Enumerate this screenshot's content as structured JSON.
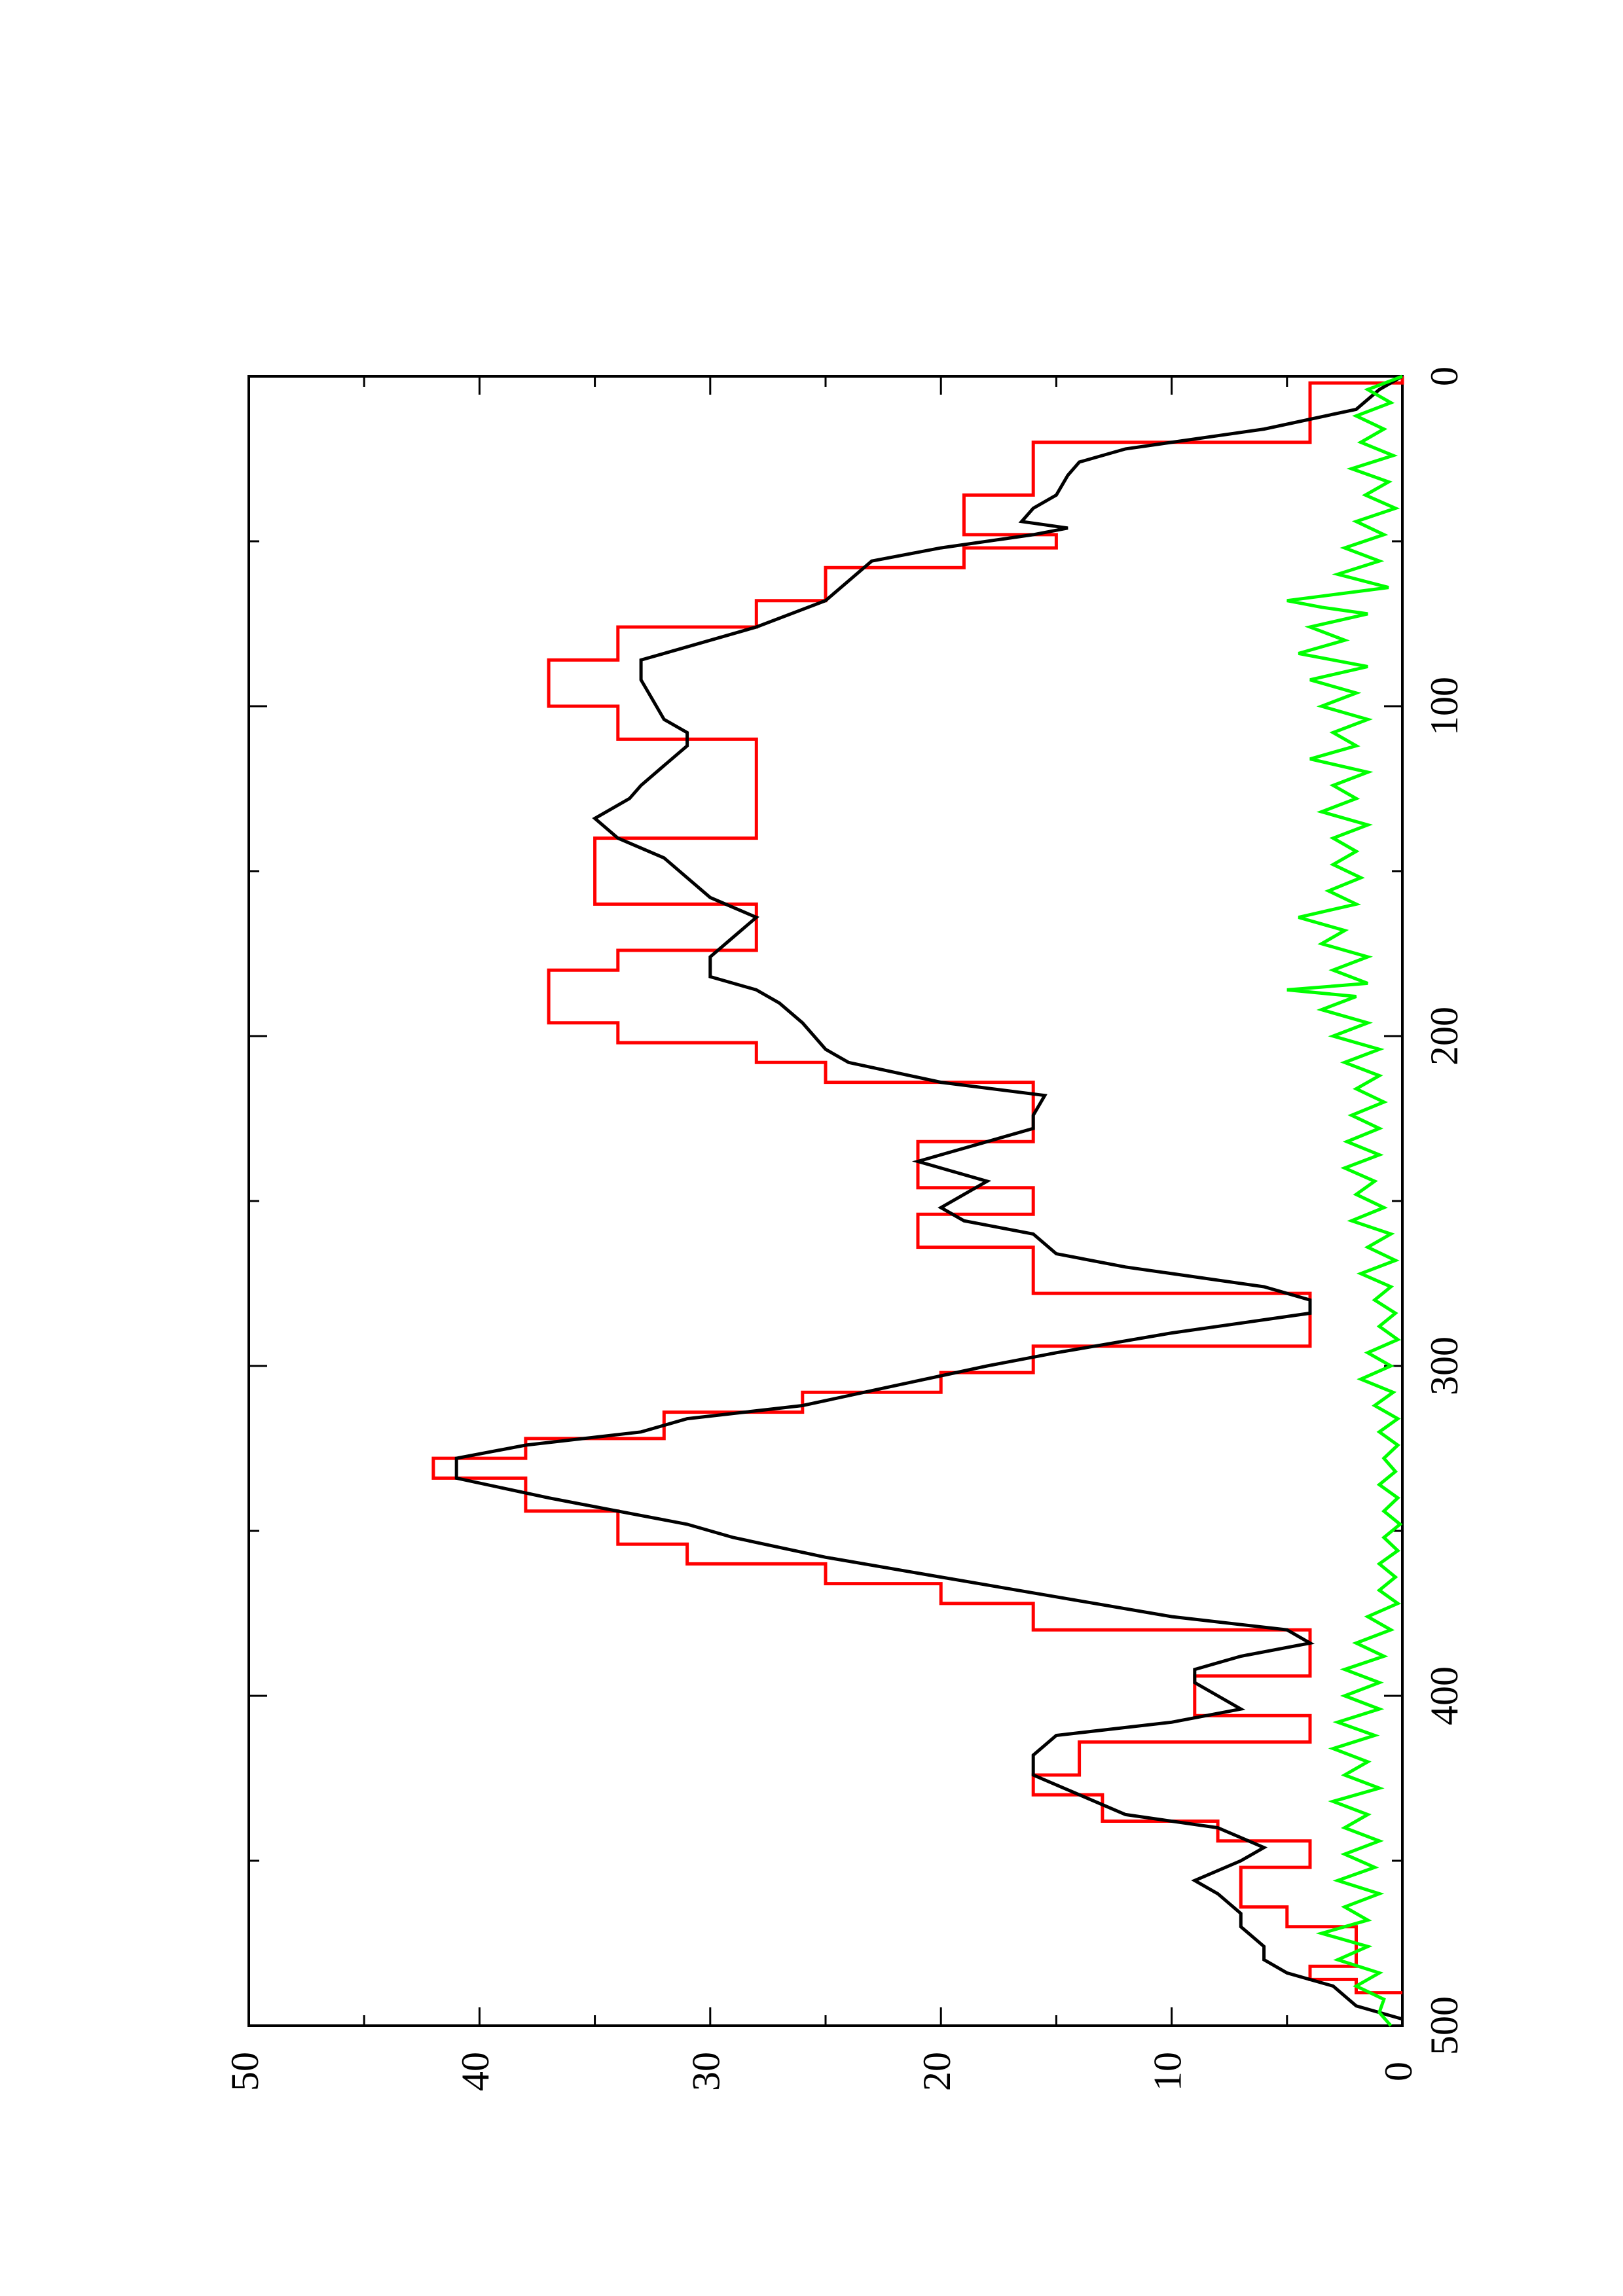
{
  "chart_data": {
    "type": "line",
    "orientation": "rotated-90-ccw",
    "title": "",
    "xlabel": "",
    "ylabel": "",
    "xlim": [
      0,
      500
    ],
    "ylim": [
      0,
      50
    ],
    "x_ticks": [
      0,
      100,
      200,
      300,
      400,
      500
    ],
    "y_ticks": [
      0,
      10,
      20,
      30,
      40,
      50
    ],
    "x_tick_labels": [
      "0",
      "100",
      "200",
      "300",
      "400",
      "500"
    ],
    "y_tick_labels": [
      "0",
      "10",
      "20",
      "30",
      "40",
      "50"
    ],
    "grid": false,
    "legend": "none",
    "series": [
      {
        "color": "#ff0000",
        "style": "step",
        "points": [
          [
            0,
            0
          ],
          [
            2,
            4
          ],
          [
            12,
            4
          ],
          [
            20,
            16
          ],
          [
            32,
            16
          ],
          [
            36,
            19
          ],
          [
            44,
            19
          ],
          [
            48,
            15
          ],
          [
            52,
            19
          ],
          [
            58,
            25
          ],
          [
            68,
            28
          ],
          [
            76,
            34
          ],
          [
            86,
            37
          ],
          [
            96,
            37
          ],
          [
            100,
            34
          ],
          [
            106,
            34
          ],
          [
            110,
            28
          ],
          [
            124,
            28
          ],
          [
            130,
            28
          ],
          [
            140,
            35
          ],
          [
            146,
            35
          ],
          [
            160,
            28
          ],
          [
            168,
            28
          ],
          [
            174,
            34
          ],
          [
            180,
            37
          ],
          [
            190,
            37
          ],
          [
            196,
            34
          ],
          [
            202,
            28
          ],
          [
            208,
            25
          ],
          [
            214,
            16
          ],
          [
            226,
            16
          ],
          [
            232,
            21
          ],
          [
            240,
            21
          ],
          [
            246,
            16
          ],
          [
            254,
            21
          ],
          [
            260,
            21
          ],
          [
            264,
            16
          ],
          [
            272,
            16
          ],
          [
            278,
            4
          ],
          [
            286,
            4
          ],
          [
            294,
            16
          ],
          [
            302,
            20
          ],
          [
            308,
            26
          ],
          [
            314,
            32
          ],
          [
            322,
            38
          ],
          [
            328,
            42
          ],
          [
            334,
            38
          ],
          [
            344,
            34
          ],
          [
            354,
            31
          ],
          [
            360,
            25
          ],
          [
            366,
            20
          ],
          [
            372,
            16
          ],
          [
            380,
            4
          ],
          [
            388,
            4
          ],
          [
            394,
            9
          ],
          [
            400,
            9
          ],
          [
            406,
            4
          ],
          [
            414,
            14
          ],
          [
            424,
            16
          ],
          [
            430,
            13
          ],
          [
            438,
            8
          ],
          [
            444,
            4
          ],
          [
            452,
            7
          ],
          [
            458,
            7
          ],
          [
            464,
            5
          ],
          [
            470,
            2
          ],
          [
            476,
            2
          ],
          [
            482,
            4
          ],
          [
            486,
            2
          ],
          [
            490,
            0
          ]
        ]
      },
      {
        "color": "#000000",
        "style": "line",
        "points": [
          [
            0,
            0
          ],
          [
            4,
            1
          ],
          [
            10,
            2
          ],
          [
            16,
            6
          ],
          [
            22,
            12
          ],
          [
            26,
            14
          ],
          [
            30,
            14.5
          ],
          [
            36,
            15
          ],
          [
            40,
            16
          ],
          [
            44,
            16.5
          ],
          [
            46,
            14.5
          ],
          [
            48,
            16
          ],
          [
            52,
            20
          ],
          [
            56,
            23
          ],
          [
            62,
            24
          ],
          [
            68,
            25
          ],
          [
            76,
            28
          ],
          [
            82,
            31
          ],
          [
            86,
            33
          ],
          [
            92,
            33
          ],
          [
            98,
            32.5
          ],
          [
            104,
            32
          ],
          [
            108,
            31
          ],
          [
            112,
            31
          ],
          [
            118,
            32
          ],
          [
            124,
            33
          ],
          [
            128,
            33.5
          ],
          [
            134,
            35
          ],
          [
            140,
            34
          ],
          [
            146,
            32
          ],
          [
            152,
            31
          ],
          [
            158,
            30
          ],
          [
            164,
            28
          ],
          [
            170,
            29
          ],
          [
            176,
            30
          ],
          [
            182,
            30
          ],
          [
            186,
            28
          ],
          [
            190,
            27
          ],
          [
            196,
            26
          ],
          [
            204,
            25
          ],
          [
            208,
            24
          ],
          [
            214,
            20
          ],
          [
            218,
            15.5
          ],
          [
            224,
            16
          ],
          [
            228,
            16
          ],
          [
            232,
            18
          ],
          [
            236,
            20
          ],
          [
            238,
            21
          ],
          [
            240,
            20
          ],
          [
            244,
            18
          ],
          [
            248,
            19
          ],
          [
            252,
            20
          ],
          [
            256,
            19
          ],
          [
            260,
            16
          ],
          [
            266,
            15
          ],
          [
            270,
            12
          ],
          [
            276,
            6
          ],
          [
            280,
            4
          ],
          [
            284,
            4
          ],
          [
            290,
            10
          ],
          [
            296,
            15
          ],
          [
            300,
            18
          ],
          [
            306,
            22
          ],
          [
            312,
            26
          ],
          [
            316,
            31
          ],
          [
            320,
            33
          ],
          [
            324,
            38
          ],
          [
            328,
            41
          ],
          [
            334,
            41
          ],
          [
            340,
            37
          ],
          [
            344,
            34
          ],
          [
            348,
            31
          ],
          [
            352,
            29
          ],
          [
            358,
            25
          ],
          [
            364,
            20
          ],
          [
            370,
            15
          ],
          [
            376,
            10
          ],
          [
            380,
            5
          ],
          [
            384,
            4
          ],
          [
            388,
            7
          ],
          [
            392,
            9
          ],
          [
            396,
            9
          ],
          [
            400,
            8
          ],
          [
            404,
            7
          ],
          [
            408,
            10
          ],
          [
            412,
            15
          ],
          [
            418,
            16
          ],
          [
            424,
            16
          ],
          [
            430,
            14
          ],
          [
            436,
            12
          ],
          [
            440,
            8
          ],
          [
            446,
            6
          ],
          [
            450,
            7
          ],
          [
            456,
            9
          ],
          [
            460,
            8
          ],
          [
            466,
            7
          ],
          [
            470,
            7
          ],
          [
            476,
            6
          ],
          [
            480,
            6
          ],
          [
            484,
            5
          ],
          [
            488,
            3
          ],
          [
            494,
            2
          ],
          [
            498,
            0
          ]
        ]
      },
      {
        "color": "#00ff00",
        "style": "noisy-line",
        "points": [
          [
            0,
            0
          ],
          [
            4,
            1.5
          ],
          [
            8,
            0.5
          ],
          [
            12,
            2
          ],
          [
            16,
            0.8
          ],
          [
            20,
            1.8
          ],
          [
            24,
            0.4
          ],
          [
            28,
            2.2
          ],
          [
            32,
            0.6
          ],
          [
            36,
            1.6
          ],
          [
            40,
            0.3
          ],
          [
            44,
            2.0
          ],
          [
            48,
            0.8
          ],
          [
            52,
            2.5
          ],
          [
            56,
            1.0
          ],
          [
            60,
            2.8
          ],
          [
            64,
            0.6
          ],
          [
            68,
            5.0
          ],
          [
            70,
            3.5
          ],
          [
            72,
            1.5
          ],
          [
            76,
            4.0
          ],
          [
            80,
            2.5
          ],
          [
            84,
            4.5
          ],
          [
            88,
            1.5
          ],
          [
            92,
            4.0
          ],
          [
            96,
            2.0
          ],
          [
            100,
            3.5
          ],
          [
            104,
            1.5
          ],
          [
            108,
            3.0
          ],
          [
            112,
            2.0
          ],
          [
            116,
            4.0
          ],
          [
            120,
            1.5
          ],
          [
            124,
            3.0
          ],
          [
            128,
            2.0
          ],
          [
            132,
            3.5
          ],
          [
            136,
            1.5
          ],
          [
            140,
            3.0
          ],
          [
            144,
            2.0
          ],
          [
            148,
            3.0
          ],
          [
            152,
            1.8
          ],
          [
            156,
            3.2
          ],
          [
            160,
            2.0
          ],
          [
            164,
            4.5
          ],
          [
            168,
            2.5
          ],
          [
            172,
            3.5
          ],
          [
            176,
            1.5
          ],
          [
            180,
            3.0
          ],
          [
            184,
            1.5
          ],
          [
            186,
            5.0
          ],
          [
            188,
            2.0
          ],
          [
            192,
            3.5
          ],
          [
            196,
            1.5
          ],
          [
            200,
            3.0
          ],
          [
            204,
            1.0
          ],
          [
            208,
            2.5
          ],
          [
            212,
            1.0
          ],
          [
            216,
            2.0
          ],
          [
            220,
            0.8
          ],
          [
            224,
            2.2
          ],
          [
            228,
            1.0
          ],
          [
            232,
            2.4
          ],
          [
            236,
            1.0
          ],
          [
            240,
            2.5
          ],
          [
            244,
            1.2
          ],
          [
            248,
            2.0
          ],
          [
            252,
            0.8
          ],
          [
            256,
            2.2
          ],
          [
            260,
            0.5
          ],
          [
            264,
            1.5
          ],
          [
            268,
            0.3
          ],
          [
            272,
            1.8
          ],
          [
            276,
            0.5
          ],
          [
            280,
            1.2
          ],
          [
            284,
            0.3
          ],
          [
            288,
            1.0
          ],
          [
            292,
            0.2
          ],
          [
            296,
            1.5
          ],
          [
            300,
            0.5
          ],
          [
            304,
            1.8
          ],
          [
            308,
            0.4
          ],
          [
            312,
            1.2
          ],
          [
            316,
            0.2
          ],
          [
            320,
            1.0
          ],
          [
            324,
            0.2
          ],
          [
            328,
            0.8
          ],
          [
            332,
            0.3
          ],
          [
            336,
            1.0
          ],
          [
            340,
            0.2
          ],
          [
            344,
            0.8
          ],
          [
            348,
            0.1
          ],
          [
            352,
            0.8
          ],
          [
            356,
            0.2
          ],
          [
            360,
            1.0
          ],
          [
            364,
            0.3
          ],
          [
            368,
            1.0
          ],
          [
            372,
            0.2
          ],
          [
            376,
            1.5
          ],
          [
            380,
            0.5
          ],
          [
            384,
            2.0
          ],
          [
            388,
            0.8
          ],
          [
            392,
            2.5
          ],
          [
            396,
            1.0
          ],
          [
            400,
            2.5
          ],
          [
            404,
            1.0
          ],
          [
            408,
            2.8
          ],
          [
            412,
            1.2
          ],
          [
            416,
            3.0
          ],
          [
            420,
            1.5
          ],
          [
            424,
            2.5
          ],
          [
            428,
            1.0
          ],
          [
            432,
            3.0
          ],
          [
            436,
            1.5
          ],
          [
            440,
            2.5
          ],
          [
            444,
            1.0
          ],
          [
            448,
            2.5
          ],
          [
            452,
            1.2
          ],
          [
            456,
            2.8
          ],
          [
            460,
            1.0
          ],
          [
            464,
            2.5
          ],
          [
            468,
            1.5
          ],
          [
            472,
            3.5
          ],
          [
            476,
            1.5
          ],
          [
            480,
            2.8
          ],
          [
            484,
            1.0
          ],
          [
            488,
            2.0
          ],
          [
            492,
            0.8
          ],
          [
            496,
            1.0
          ],
          [
            500,
            0.5
          ]
        ]
      }
    ]
  }
}
